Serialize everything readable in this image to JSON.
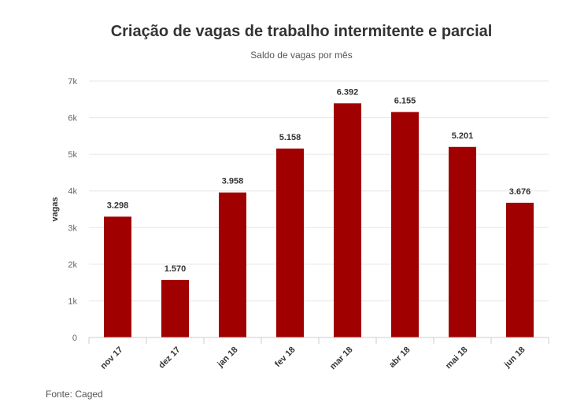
{
  "chart_data": {
    "type": "bar",
    "title": "Criação de vagas de trabalho intermitente e parcial",
    "subtitle": "Saldo de vagas por mês",
    "ylabel": "vagas",
    "xlabel": "",
    "categories": [
      "nov 17",
      "dez 17",
      "jan 18",
      "fev 18",
      "mar 18",
      "abr 18",
      "mai 18",
      "jun 18"
    ],
    "values": [
      3298,
      1570,
      3958,
      5158,
      6392,
      6155,
      5201,
      3676
    ],
    "data_labels": [
      "3.298",
      "1.570",
      "3.958",
      "5.158",
      "6.392",
      "6.155",
      "5.201",
      "3.676"
    ],
    "ylim": [
      0,
      7000
    ],
    "yticks": [
      0,
      1000,
      2000,
      3000,
      4000,
      5000,
      6000,
      7000
    ],
    "ytick_labels": [
      "0",
      "1k",
      "2k",
      "3k",
      "4k",
      "5k",
      "6k",
      "7k"
    ],
    "grid": true,
    "bar_color": "#a00000",
    "source": "Fonte: Caged"
  }
}
